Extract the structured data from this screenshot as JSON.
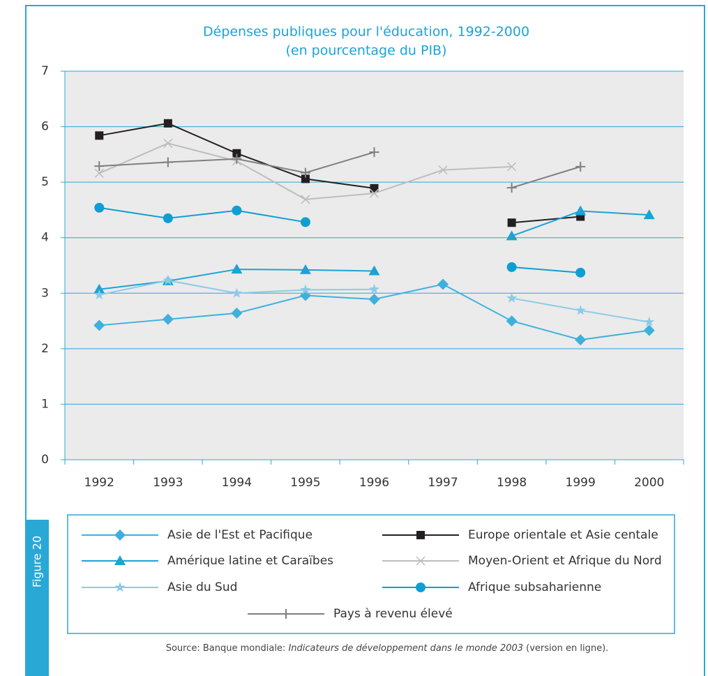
{
  "chart_data": {
    "type": "line",
    "title": "Dépenses publiques pour l'éducation, 1992-2000",
    "subtitle": "(en pourcentage du PIB)",
    "figure_label": "Figure 20",
    "source_prefix": "Source: Banque mondiale: ",
    "source_title": "Indicateurs de développement dans le monde 2003",
    "source_suffix": " (version en ligne).",
    "categories": [
      "1992",
      "1993",
      "1994",
      "1995",
      "1996",
      "1997",
      "1998",
      "1999",
      "2000"
    ],
    "ylim": [
      0,
      7
    ],
    "yticks": [
      0,
      1,
      2,
      3,
      4,
      5,
      6,
      7
    ],
    "grid": true,
    "series": [
      {
        "name": "Asie de l'Est et Pacifique",
        "color": "#3fb0dd",
        "marker": "diamond",
        "values": [
          2.42,
          2.53,
          2.64,
          2.96,
          2.89,
          3.16,
          2.5,
          2.16,
          2.33
        ]
      },
      {
        "name": "Europe orientale et Asie centale",
        "color": "#231f20",
        "marker": "square",
        "values": [
          5.84,
          6.06,
          5.52,
          5.06,
          4.89,
          null,
          4.27,
          4.38,
          null
        ]
      },
      {
        "name": "Amérique latine et Caraïbes",
        "color": "#1ba3d6",
        "marker": "triangle",
        "values": [
          3.07,
          3.22,
          3.43,
          3.42,
          3.4,
          null,
          4.03,
          4.48,
          4.41
        ]
      },
      {
        "name": "Moyen-Orient et Afrique du Nord",
        "color": "#bdbdbd",
        "marker": "x",
        "values": [
          5.16,
          5.7,
          5.38,
          4.69,
          4.8,
          5.22,
          5.28,
          null,
          null
        ]
      },
      {
        "name": "Asie du Sud",
        "color": "#8ccbe6",
        "marker": "star",
        "values": [
          2.97,
          3.23,
          3.0,
          3.06,
          3.07,
          null,
          2.91,
          2.69,
          2.48
        ]
      },
      {
        "name": "Afrique subsaharienne",
        "color": "#0d9fd3",
        "marker": "circle",
        "values": [
          4.54,
          4.35,
          4.49,
          4.28,
          null,
          null,
          3.47,
          3.37,
          null
        ]
      },
      {
        "name": "Pays à revenu élevé",
        "color": "#7f7f7f",
        "marker": "plus",
        "values": [
          5.29,
          5.36,
          5.42,
          5.17,
          5.54,
          null,
          4.9,
          5.28,
          null
        ]
      }
    ]
  }
}
